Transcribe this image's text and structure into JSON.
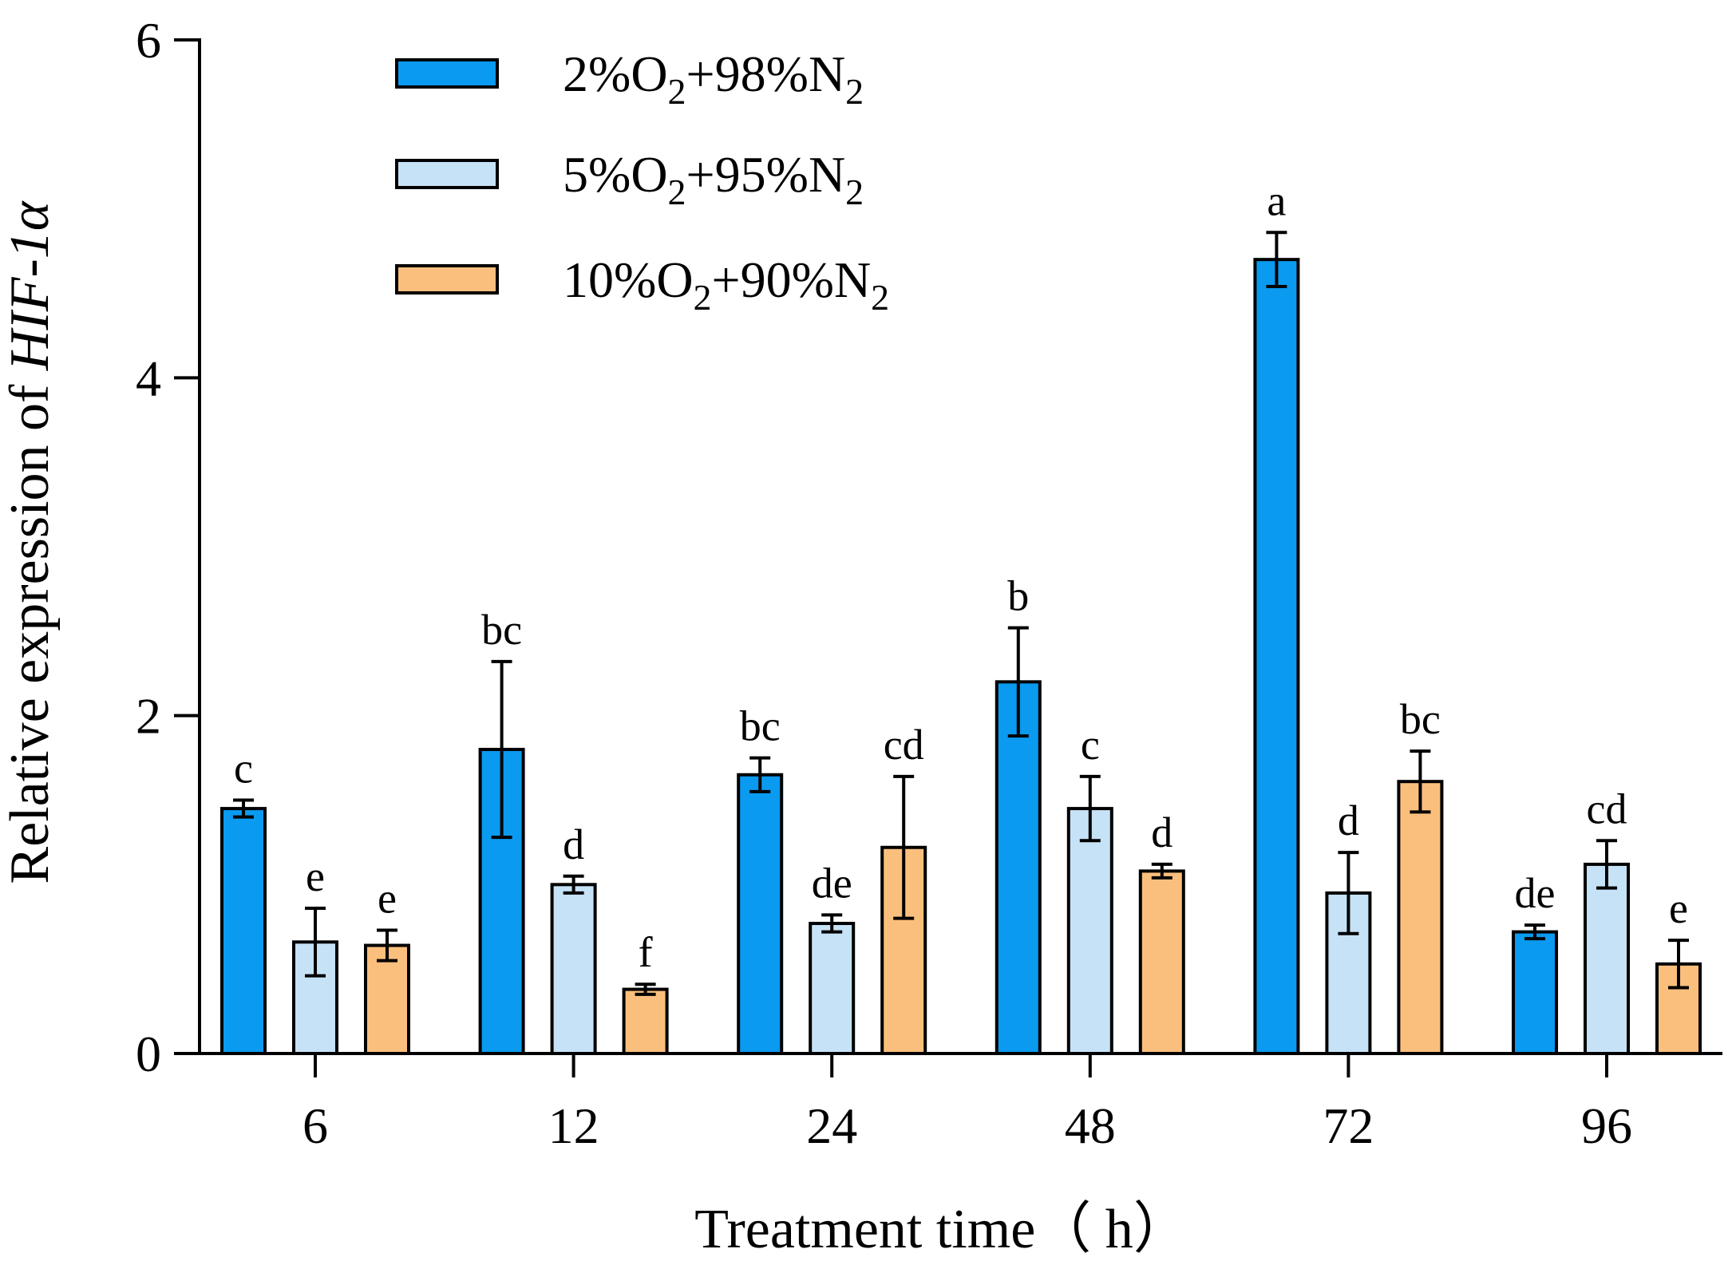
{
  "chart_data": {
    "type": "bar",
    "title": "",
    "xlabel": "Treatment time（ h）",
    "ylabel_prefix": "Relative expression of ",
    "ylabel_gene": "HIF-1α",
    "ylim": [
      0,
      6
    ],
    "yticks": [
      "0",
      "2",
      "4",
      "6"
    ],
    "categories": [
      "6",
      "12",
      "24",
      "48",
      "72",
      "96"
    ],
    "legend": {
      "position": "top-left"
    },
    "series": [
      {
        "name": "2%O2+98%N2",
        "label_parts": [
          "2%O",
          "2",
          "+98%N",
          "2"
        ],
        "color": "#0a9af0",
        "values": [
          1.45,
          1.8,
          1.65,
          2.2,
          4.7,
          0.72
        ],
        "errors": [
          0.05,
          0.52,
          0.1,
          0.32,
          0.16,
          0.04
        ],
        "letters": [
          "c",
          "bc",
          "bc",
          "b",
          "a",
          "de"
        ]
      },
      {
        "name": "5%O2+95%N2",
        "label_parts": [
          "5%O",
          "2",
          "+95%N",
          "2"
        ],
        "color": "#c6e2f7",
        "values": [
          0.66,
          1.0,
          0.77,
          1.45,
          0.95,
          1.12
        ],
        "errors": [
          0.2,
          0.05,
          0.05,
          0.19,
          0.24,
          0.14
        ],
        "letters": [
          "e",
          "d",
          "de",
          "c",
          "d",
          "cd"
        ]
      },
      {
        "name": "10%O2+90%N2",
        "label_parts": [
          "10%O",
          "2",
          "+90%N",
          "2"
        ],
        "color": "#fbbf7d",
        "values": [
          0.64,
          0.38,
          1.22,
          1.08,
          1.61,
          0.53
        ],
        "errors": [
          0.09,
          0.03,
          0.42,
          0.04,
          0.18,
          0.14
        ],
        "letters": [
          "e",
          "f",
          "cd",
          "d",
          "bc",
          "e"
        ]
      }
    ]
  }
}
